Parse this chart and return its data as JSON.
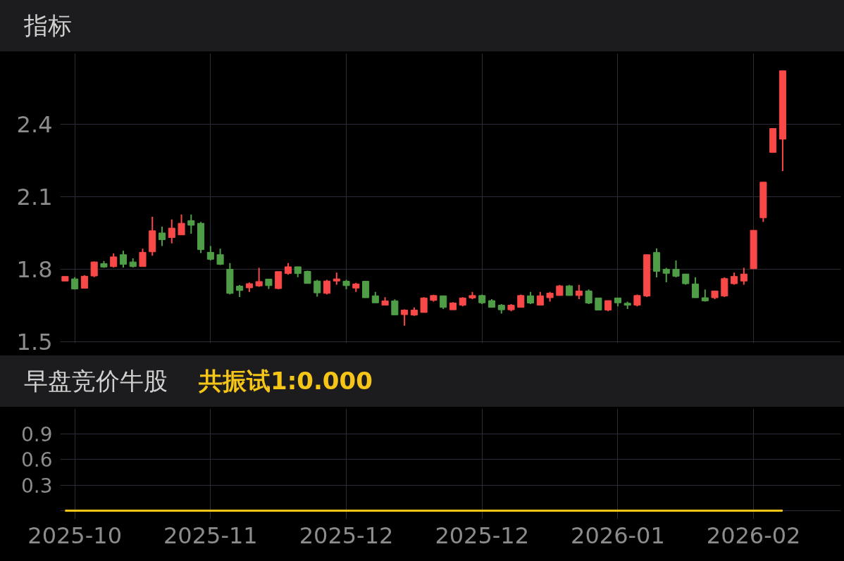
{
  "chart_data": [
    {
      "type": "candlestick",
      "title": "指标",
      "categories": [
        null,
        "2025-10",
        null,
        null,
        null,
        null,
        null,
        null,
        null,
        null,
        null,
        null,
        null,
        null,
        null,
        "2025-11",
        null,
        null,
        null,
        null,
        null,
        null,
        null,
        null,
        null,
        null,
        null,
        null,
        null,
        "2025-12",
        null,
        null,
        null,
        null,
        null,
        null,
        null,
        null,
        null,
        null,
        null,
        null,
        null,
        "2025-12",
        null,
        null,
        null,
        null,
        null,
        null,
        null,
        null,
        null,
        null,
        null,
        null,
        null,
        "2026-01",
        null,
        null,
        null,
        null,
        null,
        null,
        null,
        null,
        null,
        null,
        null,
        null,
        null,
        "2026-02",
        null,
        null,
        null
      ],
      "ohlc": [
        [
          1.752,
          1.771,
          1.752,
          1.771
        ],
        [
          1.761,
          1.768,
          1.717,
          1.719
        ],
        [
          1.722,
          1.776,
          1.722,
          1.772
        ],
        [
          1.773,
          1.833,
          1.768,
          1.831
        ],
        [
          1.824,
          1.835,
          1.807,
          1.81
        ],
        [
          1.812,
          1.866,
          1.808,
          1.852
        ],
        [
          1.861,
          1.877,
          1.808,
          1.821
        ],
        [
          1.831,
          1.846,
          1.808,
          1.812
        ],
        [
          1.812,
          1.886,
          1.812,
          1.871
        ],
        [
          1.873,
          2.018,
          1.857,
          1.96
        ],
        [
          1.951,
          1.977,
          1.897,
          1.923
        ],
        [
          1.932,
          2.007,
          1.908,
          1.971
        ],
        [
          1.943,
          2.027,
          1.943,
          1.991
        ],
        [
          2.002,
          2.027,
          1.948,
          1.983
        ],
        [
          1.991,
          1.997,
          1.868,
          1.882
        ],
        [
          1.871,
          1.897,
          1.837,
          1.842
        ],
        [
          1.861,
          1.886,
          1.818,
          1.821
        ],
        [
          1.801,
          1.826,
          1.697,
          1.701
        ],
        [
          1.731,
          1.736,
          1.686,
          1.713
        ],
        [
          1.724,
          1.746,
          1.707,
          1.741
        ],
        [
          1.732,
          1.807,
          1.728,
          1.75
        ],
        [
          1.76,
          1.76,
          1.719,
          1.733
        ],
        [
          1.721,
          1.791,
          1.718,
          1.791
        ],
        [
          1.783,
          1.826,
          1.778,
          1.811
        ],
        [
          1.811,
          1.811,
          1.768,
          1.783
        ],
        [
          1.792,
          1.795,
          1.742,
          1.742
        ],
        [
          1.752,
          1.757,
          1.687,
          1.703
        ],
        [
          1.701,
          1.757,
          1.697,
          1.752
        ],
        [
          1.752,
          1.787,
          1.737,
          1.761
        ],
        [
          1.751,
          1.757,
          1.718,
          1.733
        ],
        [
          1.723,
          1.745,
          1.707,
          1.74
        ],
        [
          1.751,
          1.751,
          1.683,
          1.683
        ],
        [
          1.691,
          1.707,
          1.662,
          1.662
        ],
        [
          1.652,
          1.685,
          1.652,
          1.67
        ],
        [
          1.67,
          1.676,
          1.612,
          1.612
        ],
        [
          1.613,
          1.635,
          1.567,
          1.632
        ],
        [
          1.611,
          1.643,
          1.608,
          1.632
        ],
        [
          1.622,
          1.685,
          1.622,
          1.682
        ],
        [
          1.672,
          1.695,
          1.667,
          1.692
        ],
        [
          1.691,
          1.691,
          1.636,
          1.643
        ],
        [
          1.633,
          1.665,
          1.633,
          1.661
        ],
        [
          1.652,
          1.685,
          1.647,
          1.682
        ],
        [
          1.682,
          1.707,
          1.677,
          1.692
        ],
        [
          1.692,
          1.696,
          1.657,
          1.662
        ],
        [
          1.671,
          1.677,
          1.643,
          1.643
        ],
        [
          1.652,
          1.657,
          1.617,
          1.633
        ],
        [
          1.633,
          1.657,
          1.627,
          1.652
        ],
        [
          1.643,
          1.696,
          1.643,
          1.692
        ],
        [
          1.691,
          1.707,
          1.657,
          1.661
        ],
        [
          1.652,
          1.707,
          1.652,
          1.691
        ],
        [
          1.683,
          1.707,
          1.667,
          1.702
        ],
        [
          1.692,
          1.736,
          1.692,
          1.732
        ],
        [
          1.732,
          1.736,
          1.692,
          1.692
        ],
        [
          1.692,
          1.736,
          1.677,
          1.711
        ],
        [
          1.711,
          1.717,
          1.657,
          1.661
        ],
        [
          1.682,
          1.682,
          1.632,
          1.632
        ],
        [
          1.632,
          1.671,
          1.627,
          1.671
        ],
        [
          1.682,
          1.682,
          1.647,
          1.662
        ],
        [
          1.66,
          1.667,
          1.636,
          1.652
        ],
        [
          1.652,
          1.696,
          1.647,
          1.692
        ],
        [
          1.69,
          1.861,
          1.686,
          1.861
        ],
        [
          1.87,
          1.887,
          1.767,
          1.792
        ],
        [
          1.801,
          1.807,
          1.747,
          1.784
        ],
        [
          1.801,
          1.837,
          1.767,
          1.772
        ],
        [
          1.781,
          1.781,
          1.737,
          1.741
        ],
        [
          1.74,
          1.767,
          1.683,
          1.683
        ],
        [
          1.683,
          1.717,
          1.667,
          1.67
        ],
        [
          1.683,
          1.711,
          1.677,
          1.711
        ],
        [
          1.69,
          1.767,
          1.686,
          1.762
        ],
        [
          1.741,
          1.787,
          1.737,
          1.771
        ],
        [
          1.752,
          1.807,
          1.737,
          1.781
        ],
        [
          1.803,
          1.962,
          1.803,
          1.962
        ],
        [
          2.014,
          2.161,
          1.997,
          2.161
        ],
        [
          2.284,
          2.383,
          2.284,
          2.383
        ],
        [
          2.339,
          2.622,
          2.207,
          2.622
        ]
      ],
      "colors": [
        "#f94848",
        "#4f9e47",
        "#f94848",
        "#f94848",
        "#4f9e47",
        "#f94848",
        "#4f9e47",
        "#4f9e47",
        "#f94848",
        "#f94848",
        "#4f9e47",
        "#f94848",
        "#f94848",
        "#4f9e47",
        "#4f9e47",
        "#4f9e47",
        "#4f9e47",
        "#4f9e47",
        "#4f9e47",
        "#f94848",
        "#f94848",
        "#4f9e47",
        "#f94848",
        "#f94848",
        "#4f9e47",
        "#4f9e47",
        "#4f9e47",
        "#f94848",
        "#f94848",
        "#4f9e47",
        "#f94848",
        "#4f9e47",
        "#4f9e47",
        "#f94848",
        "#4f9e47",
        "#f94848",
        "#f94848",
        "#f94848",
        "#f94848",
        "#4f9e47",
        "#f94848",
        "#f94848",
        "#f94848",
        "#4f9e47",
        "#4f9e47",
        "#4f9e47",
        "#f94848",
        "#f94848",
        "#4f9e47",
        "#f94848",
        "#f94848",
        "#f94848",
        "#4f9e47",
        "#f94848",
        "#4f9e47",
        "#4f9e47",
        "#f94848",
        "#4f9e47",
        "#4f9e47",
        "#f94848",
        "#f94848",
        "#4f9e47",
        "#4f9e47",
        "#4f9e47",
        "#4f9e47",
        "#4f9e47",
        "#4f9e47",
        "#f94848",
        "#f94848",
        "#f94848",
        "#f94848",
        "#f94848",
        "#f94848",
        "#f94848",
        "#f94848"
      ],
      "ylim": [
        1.495,
        2.695
      ],
      "yticks": [
        1.5,
        1.8,
        2.1,
        2.4
      ],
      "grid": true,
      "tick_labels": "y"
    },
    {
      "type": "line",
      "title": "早盘竞价牛股",
      "subtitle": "共振试1:0.000",
      "categories": [
        null,
        "2025-10",
        null,
        null,
        null,
        null,
        null,
        null,
        null,
        null,
        null,
        null,
        null,
        null,
        null,
        "2025-11",
        null,
        null,
        null,
        null,
        null,
        null,
        null,
        null,
        null,
        null,
        null,
        null,
        null,
        "2025-12",
        null,
        null,
        null,
        null,
        null,
        null,
        null,
        null,
        null,
        null,
        null,
        null,
        null,
        "2025-12",
        null,
        null,
        null,
        null,
        null,
        null,
        null,
        null,
        null,
        null,
        null,
        null,
        null,
        "2026-01",
        null,
        null,
        null,
        null,
        null,
        null,
        null,
        null,
        null,
        null,
        null,
        null,
        null,
        "2026-02",
        null,
        null,
        null
      ],
      "series": [
        {
          "color": "#f5c518",
          "values": [
            0,
            0,
            0,
            0,
            0,
            0,
            0,
            0,
            0,
            0,
            0,
            0,
            0,
            0,
            0,
            0,
            0,
            0,
            0,
            0,
            0,
            0,
            0,
            0,
            0,
            0,
            0,
            0,
            0,
            0,
            0,
            0,
            0,
            0,
            0,
            0,
            0,
            0,
            0,
            0,
            0,
            0,
            0,
            0,
            0,
            0,
            0,
            0,
            0,
            0,
            0,
            0,
            0,
            0,
            0,
            0,
            0,
            0,
            0,
            0,
            0,
            0,
            0,
            0,
            0,
            0,
            0,
            0,
            0,
            0,
            0,
            0,
            0,
            0,
            0
          ]
        }
      ],
      "ylim": [
        -0.1,
        1.2
      ],
      "yticks": [
        {
          "value": 0,
          "label": null
        },
        0.3,
        0.6,
        0.9
      ],
      "grid": true
    }
  ]
}
